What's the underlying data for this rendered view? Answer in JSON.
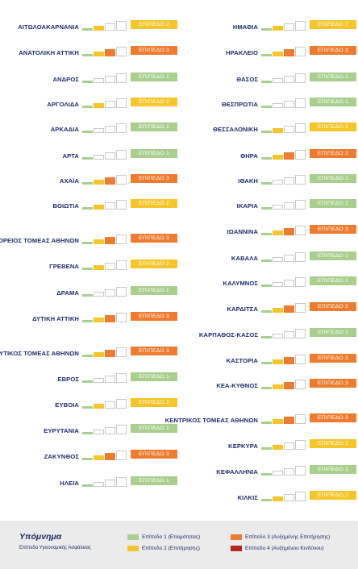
{
  "colors": {
    "level1": "#a8cf8e",
    "level2": "#f5c52a",
    "level3": "#ee7b2e",
    "level4": "#b5271c"
  },
  "left": [
    {
      "name": "ΑΙΤΩΛΟΑΚΑΡΝΑΝΙΑ",
      "level": 2,
      "label": "ΕΠΙΠΕΔΟ 2"
    },
    {
      "name": "ΑΝΑΤΟΛΙΚΗ ΑΤΤΙΚΗ",
      "level": 3,
      "label": "ΕΠΙΠΕΔΟ 3"
    },
    {
      "name": "ΑΝΔΡΟΣ",
      "level": 1,
      "label": "ΕΠΙΠΕΔΟ 1"
    },
    {
      "name": "ΑΡΓΟΛΙΔΑ",
      "level": 2,
      "label": "ΕΠΙΠΕΔΟ 2"
    },
    {
      "name": "ΑΡΚΑΔΙΑ",
      "level": 1,
      "label": "ΕΠΙΠΕΔΟ 1"
    },
    {
      "name": "ΑΡΤΑ",
      "level": 1,
      "label": "ΕΠΙΠΕΔΟ 1"
    },
    {
      "name": "ΑΧΑΪΑ",
      "level": 3,
      "label": "ΕΠΙΠΕΔΟ 3"
    },
    {
      "name": "ΒΟΙΩΤΙΑ",
      "level": 2,
      "label": "ΕΠΙΠΕΔΟ 2"
    },
    {
      "name": "ΒΟΡΕΙΟΣ ΤΟΜΕΑΣ ΑΘΗΝΩΝ",
      "level": 3,
      "label": "ΕΠΙΠΕΔΟ 3"
    },
    {
      "name": "ΓΡΕΒΕΝΑ",
      "level": 2,
      "label": "ΕΠΙΠΕΔΟ 2"
    },
    {
      "name": "ΔΡΑΜΑ",
      "level": 1,
      "label": "ΕΠΙΠΕΔΟ 1"
    },
    {
      "name": "ΔΥΤΙΚΗ ΑΤΤΙΚΗ",
      "level": 3,
      "label": "ΕΠΙΠΕΔΟ 3"
    },
    {
      "name": "ΔΥΤΙΚΟΣ ΤΟΜΕΑΣ ΑΘΗΝΩΝ",
      "level": 3,
      "label": "ΕΠΙΠΕΔΟ 3"
    },
    {
      "name": "ΕΒΡΟΣ",
      "level": 1,
      "label": "ΕΠΙΠΕΔΟ 1"
    },
    {
      "name": "ΕΥΒΟΙΑ",
      "level": 2,
      "label": "ΕΠΙΠΕΔΟ 2"
    },
    {
      "name": "ΕΥΡΥΤΑΝΙΑ",
      "level": 1,
      "label": "ΕΠΙΠΕΔΟ 1"
    },
    {
      "name": "ΖΑΚΥΝΘΟΣ",
      "level": 3,
      "label": "ΕΠΙΠΕΔΟ 3"
    },
    {
      "name": "ΗΛΕΙΑ",
      "level": 1,
      "label": "ΕΠΙΠΕΔΟ 1"
    }
  ],
  "right": [
    {
      "name": "ΗΜΑΘΙΑ",
      "level": 2,
      "label": "ΕΠΙΠΕΔΟ 2"
    },
    {
      "name": "ΗΡΑΚΛΕΙΟ",
      "level": 3,
      "label": "ΕΠΙΠΕΔΟ 3"
    },
    {
      "name": "ΘΑΣΟΣ",
      "level": 1,
      "label": "ΕΠΙΠΕΔΟ 1"
    },
    {
      "name": "ΘΕΣΠΡΩΤΙΑ",
      "level": 1,
      "label": "ΕΠΙΠΕΔΟ 1"
    },
    {
      "name": "ΘΕΣΣΑΛΟΝΙΚΗ",
      "level": 2,
      "label": "ΕΠΙΠΕΔΟ 2"
    },
    {
      "name": "ΘΗΡΑ",
      "level": 3,
      "label": "ΕΠΙΠΕΔΟ 3"
    },
    {
      "name": "ΙΘΑΚΗ",
      "level": 1,
      "label": "ΕΠΙΠΕΔΟ 1"
    },
    {
      "name": "ΙΚΑΡΙΑ",
      "level": 1,
      "label": "ΕΠΙΠΕΔΟ 1"
    },
    {
      "name": "ΙΩΑΝΝΙΝΑ",
      "level": 3,
      "label": "ΕΠΙΠΕΔΟ 3"
    },
    {
      "name": "ΚΑΒΑΛΑ",
      "level": 1,
      "label": "ΕΠΙΠΕΔΟ 1"
    },
    {
      "name": "ΚΑΛΥΜΝΟΣ",
      "level": 1,
      "label": "ΕΠΙΠΕΔΟ 1"
    },
    {
      "name": "ΚΑΡΔΙΤΣΑ",
      "level": 3,
      "label": "ΕΠΙΠΕΔΟ 3"
    },
    {
      "name": "ΚΑΡΠΑΘΟΣ-ΚΑΣΟΣ",
      "level": 1,
      "label": "ΕΠΙΠΕΔΟ 1"
    },
    {
      "name": "ΚΑΣΤΟΡΙΑ",
      "level": 3,
      "label": "ΕΠΙΠΕΔΟ 3"
    },
    {
      "name": "ΚΕΑ-ΚΥΘΝΟΣ",
      "level": 3,
      "label": "ΕΠΙΠΕΔΟ 3"
    },
    {
      "name": "ΚΕΝΤΡΙΚΟΣ ΤΟΜΕΑΣ ΑΘΗΝΩΝ",
      "level": 3,
      "label": "ΕΠΙΠΕΔΟ 3"
    },
    {
      "name": "ΚΕΡΚΥΡΑ",
      "level": 2,
      "label": "ΕΠΙΠΕΔΟ 2"
    },
    {
      "name": "ΚΕΦΑΛΛΗΝΙΑ",
      "level": 1,
      "label": "ΕΠΙΠΕΔΟ 1"
    },
    {
      "name": "ΚΙΛΚΙΣ",
      "level": 2,
      "label": "ΕΠΙΠΕΔΟ 2"
    }
  ],
  "legend": {
    "title": "Υπόμνημα",
    "subtitle": "Επίπεδα Υγειονομικής Ασφάλειας",
    "items": [
      {
        "label": "Επίπεδο 1 (Ετοιμότητας)",
        "level": 1
      },
      {
        "label": "Επίπεδο 2 (Επιτήρησης)",
        "level": 2
      },
      {
        "label": "Επίπεδο 3 (Αυξημένης Επιτήρησης)",
        "level": 3
      },
      {
        "label": "Επίπεδο 4 (Αυξημένου Κινδύνου)",
        "level": 4
      }
    ]
  }
}
